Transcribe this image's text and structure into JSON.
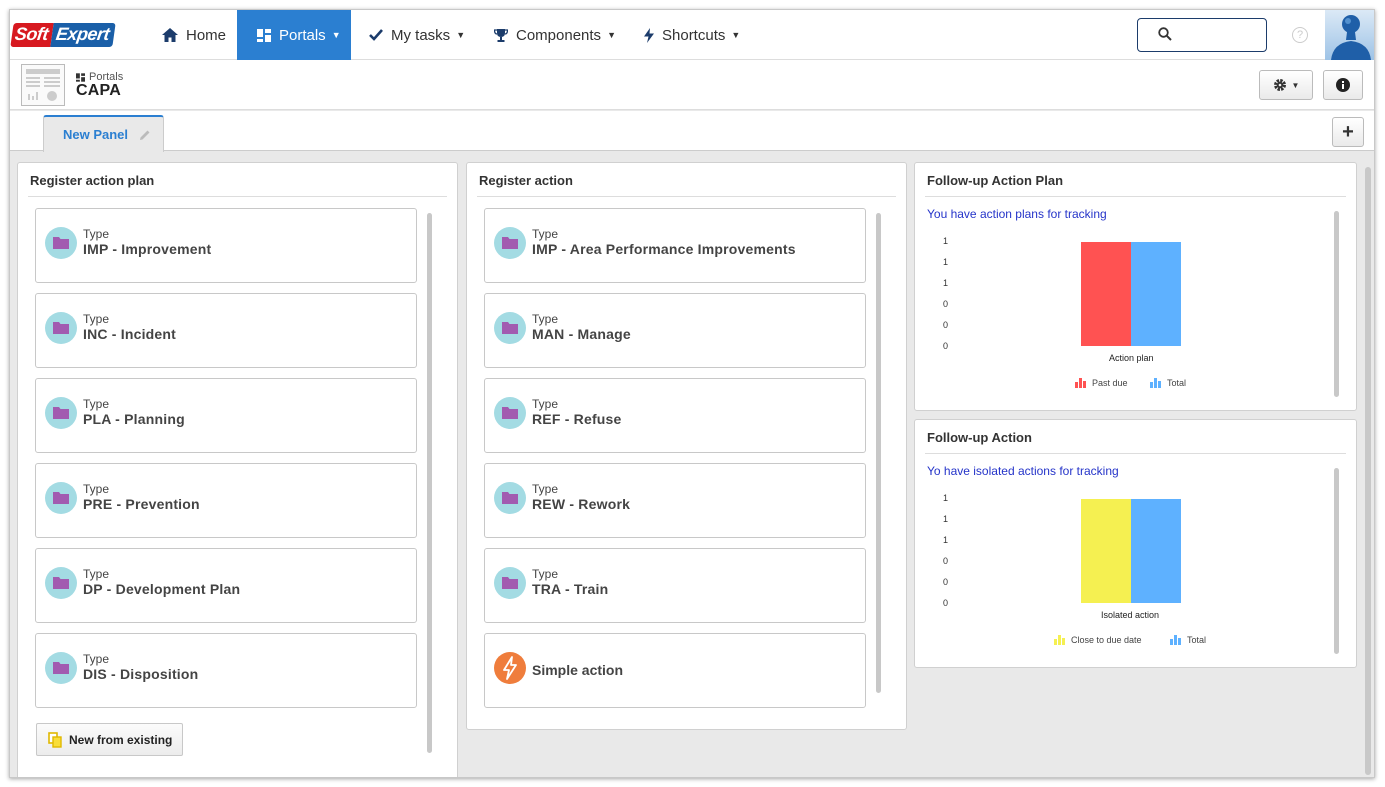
{
  "nav": {
    "logo_soft": "Soft",
    "logo_expert": "Expert",
    "home": "Home",
    "portals": "Portals",
    "my_tasks": "My tasks",
    "components": "Components",
    "shortcuts": "Shortcuts",
    "search_placeholder": "",
    "help": "?"
  },
  "header": {
    "breadcrumb": "Portals",
    "title": "CAPA"
  },
  "tabs": [
    {
      "label": "New Panel"
    }
  ],
  "register_action_plan": {
    "title": "Register action plan",
    "type_label": "Type",
    "items": [
      {
        "name": "IMP - Improvement"
      },
      {
        "name": "INC - Incident"
      },
      {
        "name": "PLA - Planning"
      },
      {
        "name": "PRE - Prevention"
      },
      {
        "name": "DP - Development Plan"
      },
      {
        "name": "DIS - Disposition"
      }
    ],
    "new_from_existing": "New from existing"
  },
  "register_action": {
    "title": "Register action",
    "type_label": "Type",
    "items": [
      {
        "name": "IMP - Area Performance Improvements"
      },
      {
        "name": "MAN - Manage"
      },
      {
        "name": "REF - Refuse"
      },
      {
        "name": "REW - Rework"
      },
      {
        "name": "TRA - Train"
      }
    ],
    "simple_action": "Simple action"
  },
  "followup_plan": {
    "title": "Follow-up Action Plan",
    "subtitle": "You have action plans for tracking"
  },
  "followup_action": {
    "title": "Follow-up Action",
    "subtitle": "Yo have isolated actions for tracking"
  },
  "colors": {
    "accent": "#2b7fd1",
    "past_due": "#ff5252",
    "total": "#5eb1ff",
    "close_to_due": "#f5f051",
    "icon_bg": "#a3dbe3",
    "folder": "#a25bb0",
    "bolt_bg": "#ef7d3c"
  },
  "chart_data": [
    {
      "type": "bar",
      "categories": [
        "Action plan"
      ],
      "series": [
        {
          "name": "Past due",
          "values": [
            1
          ]
        },
        {
          "name": "Total",
          "values": [
            1
          ]
        }
      ],
      "ytick_labels": [
        "1",
        "1",
        "1",
        "0",
        "0",
        "0"
      ],
      "ylim": [
        0,
        1
      ],
      "legend": "bottom"
    },
    {
      "type": "bar",
      "categories": [
        "Isolated action"
      ],
      "series": [
        {
          "name": "Close to due date",
          "values": [
            1
          ]
        },
        {
          "name": "Total",
          "values": [
            1
          ]
        }
      ],
      "ytick_labels": [
        "1",
        "1",
        "1",
        "0",
        "0",
        "0"
      ],
      "ylim": [
        0,
        1
      ],
      "legend": "bottom"
    }
  ]
}
